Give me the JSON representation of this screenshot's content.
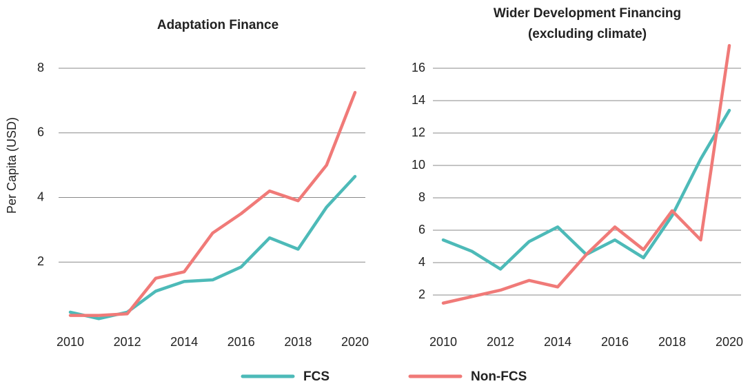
{
  "chart_data": [
    {
      "type": "line",
      "title": "Adaptation Finance",
      "ylabel": "Per Capita (USD)",
      "x": [
        2010,
        2011,
        2012,
        2013,
        2014,
        2015,
        2016,
        2017,
        2018,
        2019,
        2020
      ],
      "xlim": [
        2010,
        2020
      ],
      "xticks": [
        2010,
        2012,
        2014,
        2016,
        2018,
        2020
      ],
      "ylim": [
        0,
        8
      ],
      "yticks": [
        2,
        4,
        6,
        8
      ],
      "grid": true,
      "series": [
        {
          "name": "FCS",
          "color": "#4dbab8",
          "values": [
            0.45,
            0.25,
            0.45,
            1.1,
            1.4,
            1.45,
            1.85,
            2.75,
            2.4,
            3.7,
            4.65
          ]
        },
        {
          "name": "Non-FCS",
          "color": "#f07a78",
          "values": [
            0.35,
            0.35,
            0.4,
            1.5,
            1.7,
            2.9,
            3.5,
            4.2,
            3.9,
            5.0,
            7.25
          ]
        }
      ]
    },
    {
      "type": "line",
      "title": "Wider Development Financing",
      "subtitle": "(excluding climate)",
      "x": [
        2010,
        2011,
        2012,
        2013,
        2014,
        2015,
        2016,
        2017,
        2018,
        2019,
        2020
      ],
      "xlim": [
        2010,
        2020
      ],
      "xticks": [
        2010,
        2012,
        2014,
        2016,
        2018,
        2020
      ],
      "ylim": [
        0,
        17.5
      ],
      "yticks": [
        2,
        4,
        6,
        8,
        10,
        12,
        14,
        16
      ],
      "grid": true,
      "series": [
        {
          "name": "FCS",
          "color": "#4dbab8",
          "values": [
            5.4,
            4.7,
            3.6,
            5.3,
            6.2,
            4.5,
            5.4,
            4.3,
            6.9,
            10.4,
            13.4
          ]
        },
        {
          "name": "Non-FCS",
          "color": "#f07a78",
          "values": [
            1.5,
            1.9,
            2.3,
            2.9,
            2.5,
            4.5,
            6.2,
            4.8,
            7.2,
            5.4,
            17.4
          ]
        }
      ]
    }
  ]
}
